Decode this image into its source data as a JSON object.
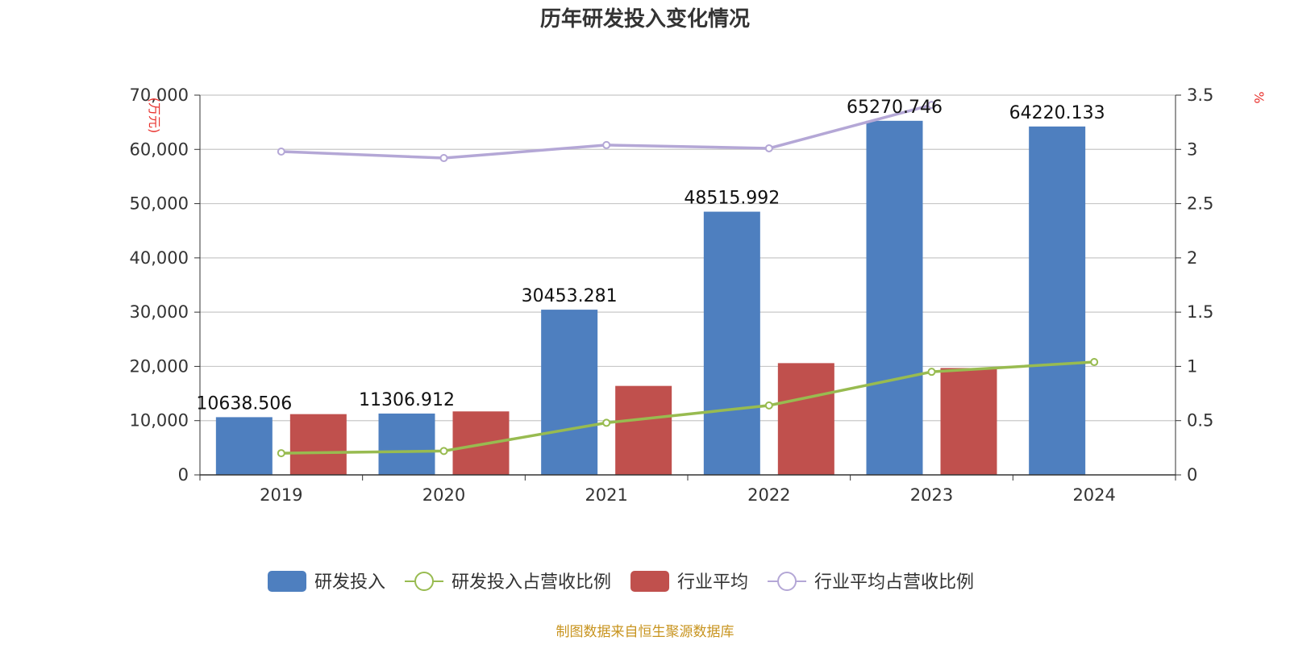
{
  "chart_data": {
    "type": "bar",
    "title": "历年研发投入变化情况",
    "categories": [
      "2019",
      "2020",
      "2021",
      "2022",
      "2023",
      "2024"
    ],
    "left_axis": {
      "unit": "(万元)",
      "ylim": [
        0,
        70000
      ],
      "ticks": [
        "0",
        "10,000",
        "20,000",
        "30,000",
        "40,000",
        "50,000",
        "60,000",
        "70,000"
      ]
    },
    "right_axis": {
      "unit": "%",
      "ylim": [
        0,
        3.5
      ],
      "ticks": [
        "0",
        "0.5",
        "1",
        "1.5",
        "2",
        "2.5",
        "3",
        "3.5"
      ]
    },
    "series": [
      {
        "name": "研发投入",
        "type": "bar",
        "axis": "left",
        "color": "#4e7fbf",
        "values": [
          10638.506,
          11306.912,
          30453.281,
          48515.992,
          65270.746,
          64220.133
        ],
        "labels": [
          "10638.506",
          "11306.912",
          "30453.281",
          "48515.992",
          "65270.746",
          "64220.133"
        ]
      },
      {
        "name": "研发投入占营收比例",
        "type": "line",
        "axis": "right",
        "color": "#98bb50",
        "values": [
          0.2,
          0.22,
          0.48,
          0.64,
          0.95,
          1.04
        ]
      },
      {
        "name": "行业平均",
        "type": "bar",
        "axis": "left",
        "color": "#c0504d",
        "values": [
          11200,
          11700,
          16400,
          20600,
          19700,
          null
        ]
      },
      {
        "name": "行业平均占营收比例",
        "type": "line",
        "axis": "right",
        "color": "#b4a7d6",
        "values": [
          2.98,
          2.92,
          3.04,
          3.01,
          3.41,
          null
        ]
      }
    ],
    "grid": true,
    "legend_position": "bottom"
  },
  "source_note": "制图数据来自恒生聚源数据库"
}
